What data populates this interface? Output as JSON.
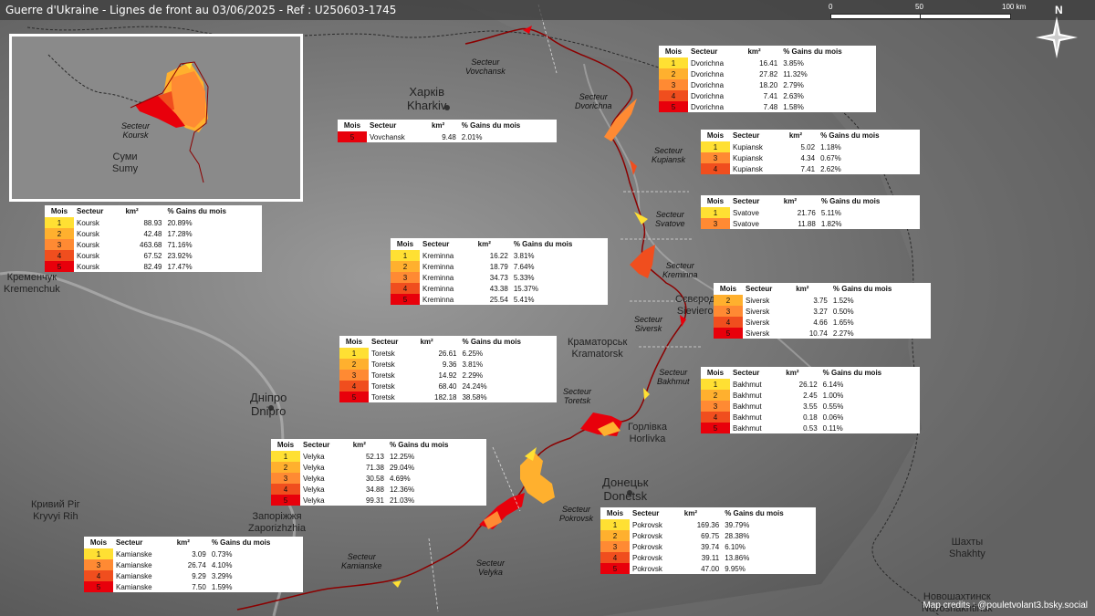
{
  "header": {
    "title": "Guerre d'Ukraine - Lignes de front au 03/06/2025 - Ref : U250603-1745",
    "scale_labels": [
      "0",
      "50",
      "100 km"
    ],
    "north": "N"
  },
  "colors": {
    "m1": "#ffe033",
    "m2": "#ffb02e",
    "m3": "#ff8a33",
    "m4": "#f04e1e",
    "m5": "#e8000b",
    "front_line": "#8b0000",
    "border": "#2a2a2a"
  },
  "inset": {
    "sector_label_1": "Secteur",
    "sector_label_2": "Koursk",
    "city_1": "Суми",
    "city_2": "Sumy"
  },
  "cities": {
    "kharkiv_1": "Харків",
    "kharkiv_2": "Kharkiv",
    "kremenchuk_1": "Кременчук",
    "kremenchuk_2": "Kremenchuk",
    "dnipro_1": "Дніпро",
    "dnipro_2": "Dnipro",
    "kryvyi_1": "Кривий Ріг",
    "kryvyi_2": "Kryvyi Rih",
    "zapo_1": "Запоріжжя",
    "zapo_2": "Zaporizhzhia",
    "kramatorsk_1": "Краматорськ",
    "kramatorsk_2": "Kramatorsk",
    "horlivka_1": "Горлівка",
    "horlivka_2": "Horlivka",
    "donetsk_1": "Донецьк",
    "donetsk_2": "Donetsk",
    "sievierod_1": "Сєвєрод",
    "sievierod_2": "Sieviero",
    "shakhty_1": "Шахты",
    "shakhty_2": "Shakhty",
    "novosh_1": "Новошахтинск",
    "novosh_2": "Novoshakhtinsk"
  },
  "sectors": {
    "vovchansk": [
      "Secteur",
      "Vovchansk"
    ],
    "dvorichna": [
      "Secteur",
      "Dvorichna"
    ],
    "kupiansk": [
      "Secteur",
      "Kupiansk"
    ],
    "svatove": [
      "Secteur",
      "Svatove"
    ],
    "kreminna": [
      "Secteur",
      "Kreminna"
    ],
    "siversk": [
      "Secteur",
      "Siversk"
    ],
    "bakhmut": [
      "Secteur",
      "Bakhmut"
    ],
    "toretsk": [
      "Secteur",
      "Toretsk"
    ],
    "pokrovsk": [
      "Secteur",
      "Pokrovsk"
    ],
    "velyka": [
      "Secteur",
      "Velyka"
    ],
    "kamianske": [
      "Secteur",
      "Kamianske"
    ]
  },
  "table_headers": [
    "Mois",
    "Secteur",
    "km²",
    "% Gains du mois"
  ],
  "tables": {
    "koursk": [
      {
        "mois": "1",
        "secteur": "Koursk",
        "km2": "88.93",
        "pct": "20.89%",
        "lvl": 1
      },
      {
        "mois": "2",
        "secteur": "Koursk",
        "km2": "42.48",
        "pct": "17.28%",
        "lvl": 2
      },
      {
        "mois": "3",
        "secteur": "Koursk",
        "km2": "463.68",
        "pct": "71.16%",
        "lvl": 3
      },
      {
        "mois": "4",
        "secteur": "Koursk",
        "km2": "67.52",
        "pct": "23.92%",
        "lvl": 4
      },
      {
        "mois": "5",
        "secteur": "Koursk",
        "km2": "82.49",
        "pct": "17.47%",
        "lvl": 5
      }
    ],
    "vovchansk": [
      {
        "mois": "5",
        "secteur": "Vovchansk",
        "km2": "9.48",
        "pct": "2.01%",
        "lvl": 5
      }
    ],
    "dvorichna": [
      {
        "mois": "1",
        "secteur": "Dvorichna",
        "km2": "16.41",
        "pct": "3.85%",
        "lvl": 1
      },
      {
        "mois": "2",
        "secteur": "Dvorichna",
        "km2": "27.82",
        "pct": "11.32%",
        "lvl": 2
      },
      {
        "mois": "3",
        "secteur": "Dvorichna",
        "km2": "18.20",
        "pct": "2.79%",
        "lvl": 3
      },
      {
        "mois": "4",
        "secteur": "Dvorichna",
        "km2": "7.41",
        "pct": "2.63%",
        "lvl": 4
      },
      {
        "mois": "5",
        "secteur": "Dvorichna",
        "km2": "7.48",
        "pct": "1.58%",
        "lvl": 5
      }
    ],
    "kupiansk": [
      {
        "mois": "1",
        "secteur": "Kupiansk",
        "km2": "5.02",
        "pct": "1.18%",
        "lvl": 1
      },
      {
        "mois": "3",
        "secteur": "Kupiansk",
        "km2": "4.34",
        "pct": "0.67%",
        "lvl": 3
      },
      {
        "mois": "4",
        "secteur": "Kupiansk",
        "km2": "7.41",
        "pct": "2.62%",
        "lvl": 4
      }
    ],
    "svatove": [
      {
        "mois": "1",
        "secteur": "Svatove",
        "km2": "21.76",
        "pct": "5.11%",
        "lvl": 1
      },
      {
        "mois": "3",
        "secteur": "Svatove",
        "km2": "11.88",
        "pct": "1.82%",
        "lvl": 3
      }
    ],
    "kreminna": [
      {
        "mois": "1",
        "secteur": "Kreminna",
        "km2": "16.22",
        "pct": "3.81%",
        "lvl": 1
      },
      {
        "mois": "2",
        "secteur": "Kreminna",
        "km2": "18.79",
        "pct": "7.64%",
        "lvl": 2
      },
      {
        "mois": "3",
        "secteur": "Kreminna",
        "km2": "34.73",
        "pct": "5.33%",
        "lvl": 3
      },
      {
        "mois": "4",
        "secteur": "Kreminna",
        "km2": "43.38",
        "pct": "15.37%",
        "lvl": 4
      },
      {
        "mois": "5",
        "secteur": "Kreminna",
        "km2": "25.54",
        "pct": "5.41%",
        "lvl": 5
      }
    ],
    "siversk": [
      {
        "mois": "2",
        "secteur": "Siversk",
        "km2": "3.75",
        "pct": "1.52%",
        "lvl": 2
      },
      {
        "mois": "3",
        "secteur": "Siversk",
        "km2": "3.27",
        "pct": "0.50%",
        "lvl": 3
      },
      {
        "mois": "4",
        "secteur": "Siversk",
        "km2": "4.66",
        "pct": "1.65%",
        "lvl": 4
      },
      {
        "mois": "5",
        "secteur": "Siversk",
        "km2": "10.74",
        "pct": "2.27%",
        "lvl": 5
      }
    ],
    "toretsk": [
      {
        "mois": "1",
        "secteur": "Toretsk",
        "km2": "26.61",
        "pct": "6.25%",
        "lvl": 1
      },
      {
        "mois": "2",
        "secteur": "Toretsk",
        "km2": "9.36",
        "pct": "3.81%",
        "lvl": 2
      },
      {
        "mois": "3",
        "secteur": "Toretsk",
        "km2": "14.92",
        "pct": "2.29%",
        "lvl": 3
      },
      {
        "mois": "4",
        "secteur": "Toretsk",
        "km2": "68.40",
        "pct": "24.24%",
        "lvl": 4
      },
      {
        "mois": "5",
        "secteur": "Toretsk",
        "km2": "182.18",
        "pct": "38.58%",
        "lvl": 5
      }
    ],
    "bakhmut": [
      {
        "mois": "1",
        "secteur": "Bakhmut",
        "km2": "26.12",
        "pct": "6.14%",
        "lvl": 1
      },
      {
        "mois": "2",
        "secteur": "Bakhmut",
        "km2": "2.45",
        "pct": "1.00%",
        "lvl": 2
      },
      {
        "mois": "3",
        "secteur": "Bakhmut",
        "km2": "3.55",
        "pct": "0.55%",
        "lvl": 3
      },
      {
        "mois": "4",
        "secteur": "Bakhmut",
        "km2": "0.18",
        "pct": "0.06%",
        "lvl": 4
      },
      {
        "mois": "5",
        "secteur": "Bakhmut",
        "km2": "0.53",
        "pct": "0.11%",
        "lvl": 5
      }
    ],
    "velyka": [
      {
        "mois": "1",
        "secteur": "Velyka",
        "km2": "52.13",
        "pct": "12.25%",
        "lvl": 1
      },
      {
        "mois": "2",
        "secteur": "Velyka",
        "km2": "71.38",
        "pct": "29.04%",
        "lvl": 2
      },
      {
        "mois": "3",
        "secteur": "Velyka",
        "km2": "30.58",
        "pct": "4.69%",
        "lvl": 3
      },
      {
        "mois": "4",
        "secteur": "Velyka",
        "km2": "34.88",
        "pct": "12.36%",
        "lvl": 4
      },
      {
        "mois": "5",
        "secteur": "Velyka",
        "km2": "99.31",
        "pct": "21.03%",
        "lvl": 5
      }
    ],
    "pokrovsk": [
      {
        "mois": "1",
        "secteur": "Pokrovsk",
        "km2": "169.36",
        "pct": "39.79%",
        "lvl": 1
      },
      {
        "mois": "2",
        "secteur": "Pokrovsk",
        "km2": "69.75",
        "pct": "28.38%",
        "lvl": 2
      },
      {
        "mois": "3",
        "secteur": "Pokrovsk",
        "km2": "39.74",
        "pct": "6.10%",
        "lvl": 3
      },
      {
        "mois": "4",
        "secteur": "Pokrovsk",
        "km2": "39.11",
        "pct": "13.86%",
        "lvl": 4
      },
      {
        "mois": "5",
        "secteur": "Pokrovsk",
        "km2": "47.00",
        "pct": "9.95%",
        "lvl": 5
      }
    ],
    "kamianske": [
      {
        "mois": "1",
        "secteur": "Kamianske",
        "km2": "3.09",
        "pct": "0.73%",
        "lvl": 1
      },
      {
        "mois": "3",
        "secteur": "Kamianske",
        "km2": "26.74",
        "pct": "4.10%",
        "lvl": 3
      },
      {
        "mois": "4",
        "secteur": "Kamianske",
        "km2": "9.29",
        "pct": "3.29%",
        "lvl": 4
      },
      {
        "mois": "5",
        "secteur": "Kamianske",
        "km2": "7.50",
        "pct": "1.59%",
        "lvl": 5
      }
    ]
  },
  "credits": "Map credits : @pouletvolant3.bsky.social"
}
